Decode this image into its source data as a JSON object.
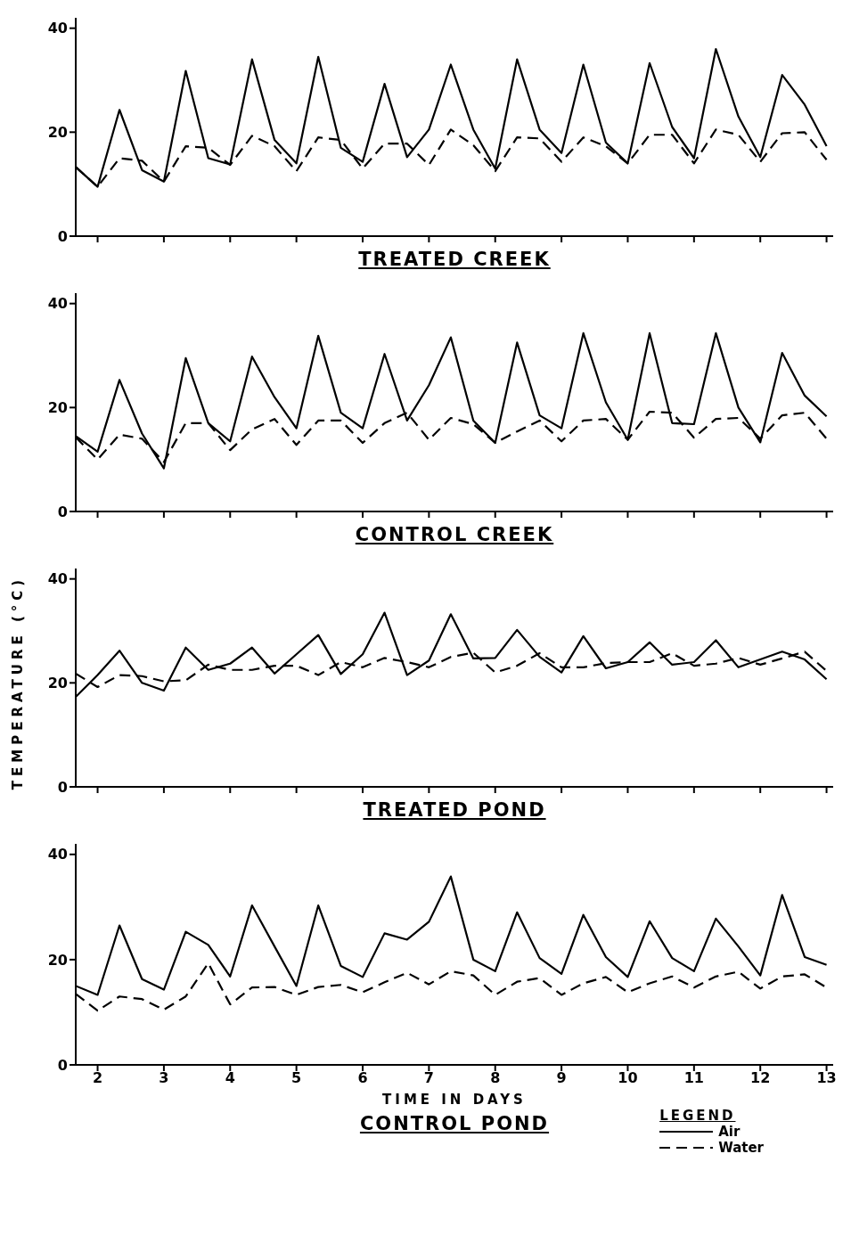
{
  "chart_data": [
    {
      "type": "line",
      "title": "TREATED CREEK",
      "x": [
        1.67,
        2,
        2.33,
        2.67,
        3,
        3.33,
        3.67,
        4,
        4.33,
        4.67,
        5,
        5.33,
        5.67,
        6,
        6.33,
        6.67,
        7,
        7.33,
        7.67,
        8,
        8.33,
        8.67,
        9,
        9.33,
        9.67,
        10,
        10.33,
        10.67,
        11,
        11.33,
        11.67,
        12,
        12.33,
        12.67,
        13
      ],
      "xlim": [
        1.67,
        13.1
      ],
      "xticks": [
        2,
        3,
        4,
        5,
        6,
        7,
        8,
        9,
        10,
        11,
        12,
        13
      ],
      "ylim": [
        0,
        42
      ],
      "yticks": [
        0,
        20,
        40
      ],
      "tick_labels": "y",
      "series": [
        {
          "color": "#000000",
          "line_style": "solid",
          "values": [
            13.3,
            9.5,
            24.3,
            12.7,
            10.5,
            31.8,
            15,
            13.8,
            34,
            18.5,
            14,
            34.5,
            17,
            14.3,
            29.3,
            15.2,
            20.5,
            33,
            20.5,
            13,
            34,
            20.5,
            16,
            33,
            18,
            14,
            33.3,
            21,
            15,
            36,
            23,
            15.2,
            31,
            25.3,
            17.3
          ]
        },
        {
          "color": "#000000",
          "line_style": "dashed",
          "values": [
            13.3,
            9.5,
            15,
            14.5,
            10.5,
            17.3,
            17,
            13.7,
            19.3,
            17.3,
            12.5,
            19,
            18.5,
            13,
            17.8,
            17.8,
            13.7,
            20.5,
            17.5,
            12.5,
            19,
            18.8,
            14.3,
            19,
            17.3,
            14,
            19.5,
            19.5,
            14,
            20.5,
            19.5,
            14.3,
            19.8,
            20,
            14.7
          ]
        }
      ]
    },
    {
      "type": "line",
      "title": "CONTROL CREEK",
      "x": [
        1.67,
        2,
        2.33,
        2.67,
        3,
        3.33,
        3.67,
        4,
        4.33,
        4.67,
        5,
        5.33,
        5.67,
        6,
        6.33,
        6.67,
        7,
        7.33,
        7.67,
        8,
        8.33,
        8.67,
        9,
        9.33,
        9.67,
        10,
        10.33,
        10.67,
        11,
        11.33,
        11.67,
        12,
        12.33,
        12.67,
        13
      ],
      "xlim": [
        1.67,
        13.1
      ],
      "xticks": [
        2,
        3,
        4,
        5,
        6,
        7,
        8,
        9,
        10,
        11,
        12,
        13
      ],
      "ylim": [
        0,
        42
      ],
      "yticks": [
        0,
        20,
        40
      ],
      "tick_labels": "y",
      "series": [
        {
          "color": "#000000",
          "line_style": "solid",
          "values": [
            14.5,
            11.5,
            25.3,
            15,
            8.3,
            29.5,
            17,
            13.5,
            29.8,
            22,
            16,
            33.8,
            19,
            16,
            30.3,
            17.5,
            24.3,
            33.5,
            17.5,
            13.2,
            32.5,
            18.5,
            16,
            34.3,
            21,
            13.8,
            34.3,
            17,
            16.8,
            34.3,
            20,
            13.3,
            30.5,
            22.3,
            18.3
          ]
        },
        {
          "color": "#000000",
          "line_style": "dashed",
          "values": [
            14.3,
            10,
            14.8,
            14,
            9.5,
            17,
            17,
            11.8,
            15.8,
            17.8,
            12.8,
            17.5,
            17.5,
            13.2,
            17,
            19,
            13.8,
            18,
            16.8,
            13.2,
            15.4,
            17.5,
            13.5,
            17.5,
            17.8,
            13.8,
            19.2,
            19,
            14.2,
            17.8,
            18,
            14,
            18.5,
            19,
            14
          ]
        }
      ]
    },
    {
      "type": "line",
      "title": "TREATED POND",
      "ylabel": "TEMPERATURE (°C)",
      "x": [
        1.67,
        2,
        2.33,
        2.67,
        3,
        3.33,
        3.67,
        4,
        4.33,
        4.67,
        5,
        5.33,
        5.67,
        6,
        6.33,
        6.67,
        7,
        7.33,
        7.67,
        8,
        8.33,
        8.67,
        9,
        9.33,
        9.67,
        10,
        10.33,
        10.67,
        11,
        11.33,
        11.67,
        12,
        12.33,
        12.67,
        13
      ],
      "xlim": [
        1.67,
        13.1
      ],
      "xticks": [
        2,
        3,
        4,
        5,
        6,
        7,
        8,
        9,
        10,
        11,
        12,
        13
      ],
      "ylim": [
        0,
        42
      ],
      "yticks": [
        0,
        20,
        40
      ],
      "tick_labels": "y",
      "series": [
        {
          "color": "#000000",
          "line_style": "solid",
          "values": [
            17.3,
            21.5,
            26.2,
            20,
            18.5,
            26.8,
            22.5,
            23.7,
            26.8,
            21.8,
            25.5,
            29.2,
            21.7,
            25.5,
            33.5,
            21.5,
            24.3,
            33.2,
            24.7,
            24.8,
            30.2,
            25,
            22,
            29,
            22.8,
            24,
            27.8,
            23.5,
            24,
            28.2,
            23,
            24.5,
            26,
            24.5,
            20.7
          ]
        },
        {
          "color": "#000000",
          "line_style": "dashed",
          "values": [
            21.8,
            19.2,
            21.5,
            21.3,
            20.3,
            20.5,
            23.5,
            22.5,
            22.5,
            23.3,
            23.3,
            21.5,
            24,
            23,
            24.8,
            24,
            23,
            25,
            25.8,
            22,
            23.3,
            25.7,
            23,
            23,
            23.8,
            24,
            24,
            25.7,
            23.3,
            23.7,
            24.8,
            23.5,
            24.7,
            26,
            22.3
          ]
        }
      ]
    },
    {
      "type": "line",
      "title": "CONTROL POND",
      "xlabel": "TIME IN DAYS",
      "legend": "bottom right",
      "legend_title": "LEGEND",
      "x": [
        1.67,
        2,
        2.33,
        2.67,
        3,
        3.33,
        3.67,
        4,
        4.33,
        4.67,
        5,
        5.33,
        5.67,
        6,
        6.33,
        6.67,
        7,
        7.33,
        7.67,
        8,
        8.33,
        8.67,
        9,
        9.33,
        9.67,
        10,
        10.33,
        10.67,
        11,
        11.33,
        11.67,
        12,
        12.33,
        12.67,
        13
      ],
      "xlim": [
        1.67,
        13.1
      ],
      "xticks": [
        2,
        3,
        4,
        5,
        6,
        7,
        8,
        9,
        10,
        11,
        12,
        13
      ],
      "ylim": [
        0,
        42
      ],
      "yticks": [
        0,
        20,
        40
      ],
      "series": [
        {
          "name": "Air",
          "color": "#000000",
          "line_style": "solid",
          "values": [
            15,
            13.3,
            26.5,
            16.3,
            14.3,
            25.3,
            22.8,
            16.8,
            30.3,
            22.5,
            15,
            30.3,
            18.8,
            16.7,
            25,
            23.8,
            27.2,
            35.8,
            20,
            17.8,
            29,
            20.3,
            17.3,
            28.5,
            20.5,
            16.7,
            27.3,
            20.3,
            17.8,
            27.8,
            22.5,
            17,
            32.3,
            20.5,
            19
          ]
        },
        {
          "name": "Water",
          "color": "#000000",
          "line_style": "dashed",
          "values": [
            13.5,
            10.3,
            13,
            12.5,
            10.5,
            13,
            19.3,
            11.5,
            14.7,
            14.8,
            13.3,
            14.8,
            15.2,
            13.8,
            15.7,
            17.5,
            15.3,
            17.8,
            17,
            13.3,
            15.8,
            16.5,
            13.3,
            15.5,
            16.7,
            13.8,
            15.5,
            16.8,
            14.7,
            16.8,
            17.7,
            14.5,
            16.8,
            17.2,
            14.7
          ]
        }
      ]
    }
  ]
}
